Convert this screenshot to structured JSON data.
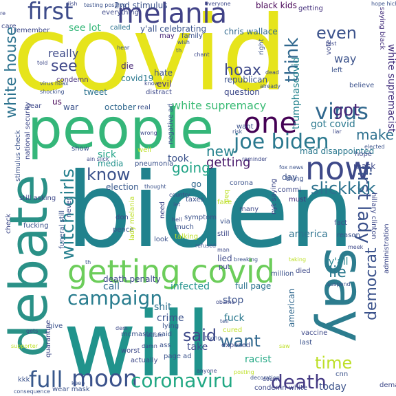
{
  "words": [
    {
      "text": "covid",
      "color": "#e6e41b"
    },
    {
      "text": "biden",
      "color": "#21828d"
    },
    {
      "text": "will",
      "color": "#20938c"
    },
    {
      "text": "debate",
      "color": "#2a9187"
    },
    {
      "text": "people",
      "color": "#34b679"
    },
    {
      "text": "say",
      "color": "#2c7c8e"
    },
    {
      "text": "getting covid",
      "color": "#6ccd5a"
    },
    {
      "text": "now",
      "color": "#3e4989"
    },
    {
      "text": "one",
      "color": "#440154"
    },
    {
      "text": "melania",
      "color": "#414287"
    },
    {
      "text": "first",
      "color": "#3e4c8a"
    },
    {
      "text": "joe biden",
      "color": "#2a788e"
    },
    {
      "text": "campaign",
      "color": "#287c8e"
    },
    {
      "text": "virus",
      "color": "#31688e"
    },
    {
      "text": "full",
      "color": "#38588c"
    },
    {
      "text": "moon",
      "color": "#3b528b"
    },
    {
      "text": "coronaviru",
      "color": "#22a884"
    },
    {
      "text": "death",
      "color": "#443983"
    },
    {
      "text": "first lady",
      "color": "#3b518b"
    },
    {
      "text": "witch girls",
      "color": "#27808e"
    },
    {
      "text": "know",
      "color": "#3b528b"
    },
    {
      "text": "slickkkk",
      "color": "#2c728e"
    },
    {
      "text": "getting",
      "color": "#48186a"
    },
    {
      "text": "white house",
      "color": "#2c728e"
    },
    {
      "text": "said",
      "color": "#3e4989"
    },
    {
      "text": "want",
      "color": "#31688e"
    },
    {
      "text": "time",
      "color": "#bddf26"
    },
    {
      "text": "think",
      "color": "#31688e"
    },
    {
      "text": "even",
      "color": "#3b528b"
    },
    {
      "text": "see",
      "color": "#3f4788"
    },
    {
      "text": "hoax",
      "color": "#3e4989"
    },
    {
      "text": "got",
      "color": "#482878"
    },
    {
      "text": "make",
      "color": "#2d708e"
    },
    {
      "text": "new",
      "color": "#26828e"
    },
    {
      "text": "lie",
      "color": "#2a788e"
    },
    {
      "text": "democrat",
      "color": "#3b528b"
    },
    {
      "text": "going",
      "color": "#20a386"
    },
    {
      "text": "really",
      "color": "#3e4a89"
    },
    {
      "text": "white supremacy",
      "color": "#3bbb75"
    },
    {
      "text": "white supremacist",
      "color": "#46327e"
    },
    {
      "text": "trumphascovid",
      "color": "#25848e"
    },
    {
      "text": "see lot",
      "color": "#35b779"
    },
    {
      "text": "y'all celebrating",
      "color": "#3a548c"
    },
    {
      "text": "chris wallace",
      "color": "#30698e"
    },
    {
      "text": "way",
      "color": "#3b528b"
    },
    {
      "text": "got covid",
      "color": "#2a788e"
    },
    {
      "text": "mad disappointed",
      "color": "#2a788e"
    },
    {
      "text": "took",
      "color": "#3b528b"
    },
    {
      "text": "media",
      "color": "#21918c"
    },
    {
      "text": "sick",
      "color": "#20a386"
    },
    {
      "text": "election",
      "color": "#38598c"
    },
    {
      "text": "go",
      "color": "#31688e"
    },
    {
      "text": "day",
      "color": "#3b528b"
    },
    {
      "text": "mask",
      "color": "#3e4989"
    },
    {
      "text": "america",
      "color": "#2c728e"
    },
    {
      "text": "y'all",
      "color": "#25848e"
    },
    {
      "text": "infected",
      "color": "#21918c"
    },
    {
      "text": "stop",
      "color": "#3b528b"
    },
    {
      "text": "call",
      "color": "#31688e"
    },
    {
      "text": "shit",
      "color": "#2d708e"
    },
    {
      "text": "crime",
      "color": "#3b528b"
    },
    {
      "text": "fuck",
      "color": "#2a788e"
    },
    {
      "text": "take",
      "color": "#3e4989"
    },
    {
      "text": "racist",
      "color": "#22a884"
    },
    {
      "text": "today",
      "color": "#3b528b"
    },
    {
      "text": "american",
      "color": "#31688e"
    },
    {
      "text": "lied",
      "color": "#3e4989"
    },
    {
      "text": "full page",
      "color": "#2c728e"
    },
    {
      "text": "death penalty",
      "color": "#3e4989"
    },
    {
      "text": "october",
      "color": "#31688e"
    },
    {
      "text": "us",
      "color": "#440154"
    },
    {
      "text": "die",
      "color": "#482878"
    },
    {
      "text": "hate",
      "color": "#3b528b"
    },
    {
      "text": "evil",
      "color": "#46327e"
    },
    {
      "text": "republican",
      "color": "#3b528b"
    },
    {
      "text": "question",
      "color": "#3e4989"
    },
    {
      "text": "tweet",
      "color": "#2c728e"
    },
    {
      "text": "covid19",
      "color": "#2a788e"
    },
    {
      "text": "condemn",
      "color": "#46327e"
    },
    {
      "text": "war",
      "color": "#3b528b"
    },
    {
      "text": "year",
      "color": "#3e4989"
    },
    {
      "text": "real",
      "color": "#3b528b"
    },
    {
      "text": "2nd stimulus",
      "color": "#3b528b"
    },
    {
      "text": "everything",
      "color": "#3e4989"
    },
    {
      "text": "called",
      "color": "#2c728e"
    },
    {
      "text": "family",
      "color": "#3b528b"
    },
    {
      "text": "may",
      "color": "#482878"
    },
    {
      "text": "black kids",
      "color": "#440154"
    },
    {
      "text": "getting",
      "color": "#46327e"
    },
    {
      "text": "saying black",
      "color": "#46327e"
    },
    {
      "text": "remember",
      "color": "#3e4989"
    },
    {
      "text": "taxes",
      "color": "#3b528b"
    },
    {
      "text": "pneumonia",
      "color": "#3b528b"
    },
    {
      "text": "symptom",
      "color": "#3b528b"
    },
    {
      "text": "need",
      "color": "#3e4989"
    },
    {
      "text": "much",
      "color": "#3b528b"
    },
    {
      "text": "pence",
      "color": "#3b528b"
    },
    {
      "text": "don",
      "color": "#3e4989"
    },
    {
      "text": "look",
      "color": "#3b528b"
    },
    {
      "text": "still",
      "color": "#3e4989"
    },
    {
      "text": "talking",
      "color": "#bddf26"
    },
    {
      "text": "many",
      "color": "#3e4989"
    },
    {
      "text": "via",
      "color": "#3b528b"
    },
    {
      "text": "nyt saying",
      "color": "#3e4989"
    },
    {
      "text": "fact",
      "color": "#3b528b"
    },
    {
      "text": "reason",
      "color": "#3b528b"
    },
    {
      "text": "hillary clinton",
      "color": "#3e4989"
    },
    {
      "text": "million",
      "color": "#3b528b"
    },
    {
      "text": "died",
      "color": "#3e4989"
    },
    {
      "text": "corona",
      "color": "#3b528b"
    },
    {
      "text": "commi",
      "color": "#3e4989"
    },
    {
      "text": "must",
      "color": "#46327e"
    },
    {
      "text": "thing",
      "color": "#3b528b"
    },
    {
      "text": "hope",
      "color": "#3e4989"
    },
    {
      "text": "well",
      "color": "#bddf26"
    },
    {
      "text": "show",
      "color": "#3b528b"
    },
    {
      "text": "check",
      "color": "#3e4989"
    },
    {
      "text": "stimulus check",
      "color": "#3b528b"
    },
    {
      "text": "still asking",
      "color": "#3e4989"
    },
    {
      "text": "fucking",
      "color": "#3b528b"
    },
    {
      "text": "never",
      "color": "#3e4989"
    },
    {
      "text": "funeral still",
      "color": "#3b528b"
    },
    {
      "text": "lady melania",
      "color": "#bddf26"
    },
    {
      "text": "negative ad",
      "color": "#3b528b"
    },
    {
      "text": "mcmaster said",
      "color": "#3b528b"
    },
    {
      "text": "worst",
      "color": "#3e4989"
    },
    {
      "text": "lying",
      "color": "#3b528b"
    },
    {
      "text": "put",
      "color": "#3e4989"
    },
    {
      "text": "give",
      "color": "#3b528b"
    },
    {
      "text": "actually",
      "color": "#3e4989"
    },
    {
      "text": "page ad",
      "color": "#3b528b"
    },
    {
      "text": "exposed",
      "color": "#3e4989"
    },
    {
      "text": "wear mask",
      "color": "#3b528b"
    },
    {
      "text": "condemn white",
      "color": "#3e4989"
    },
    {
      "text": "cnn",
      "color": "#3b528b"
    },
    {
      "text": "demanding",
      "color": "#3e4989"
    },
    {
      "text": "last",
      "color": "#3b528b"
    },
    {
      "text": "vaccine",
      "color": "#3e4989"
    },
    {
      "text": "kkk",
      "color": "#3b528b"
    },
    {
      "text": "quarantine",
      "color": "#3e4989"
    },
    {
      "text": "supporter",
      "color": "#bddf26"
    },
    {
      "text": "consequence",
      "color": "#3b528b"
    },
    {
      "text": "administration",
      "color": "#3e4989"
    },
    {
      "text": "breaking",
      "color": "#3b528b"
    },
    {
      "text": "national security",
      "color": "#3e4989"
    },
    {
      "text": "shocking",
      "color": "#3b528b"
    },
    {
      "text": "distract",
      "color": "#3e4989"
    },
    {
      "text": "believe",
      "color": "#3b528b"
    },
    {
      "text": "vote",
      "color": "#3e4989"
    },
    {
      "text": "left",
      "color": "#3b528b"
    },
    {
      "text": "test",
      "color": "#3e4989"
    },
    {
      "text": "hope hicks",
      "color": "#3b528b"
    },
    {
      "text": "everyone",
      "color": "#3e4989"
    },
    {
      "text": "testing positive",
      "color": "#3b528b"
    },
    {
      "text": "dish",
      "color": "#3e4989"
    },
    {
      "text": "wish",
      "color": "#3b528b"
    },
    {
      "text": "chant",
      "color": "#3e4989"
    },
    {
      "text": "hear",
      "color": "#3b528b"
    },
    {
      "text": "told",
      "color": "#3e4989"
    },
    {
      "text": "virus hoax",
      "color": "#3b528b"
    },
    {
      "text": "know",
      "color": "#3e4989"
    },
    {
      "text": "right",
      "color": "#3b528b"
    },
    {
      "text": "dead",
      "color": "#3e4989"
    },
    {
      "text": "already",
      "color": "#3b528b"
    },
    {
      "text": "wrong",
      "color": "#3e4989"
    },
    {
      "text": "risk",
      "color": "#3b528b"
    },
    {
      "text": "liar",
      "color": "#3e4989"
    },
    {
      "text": "elected",
      "color": "#3b528b"
    },
    {
      "text": "reminder",
      "color": "#3e4989"
    },
    {
      "text": "fox news",
      "color": "#3b528b"
    },
    {
      "text": "ain slick",
      "color": "#3e4989"
    },
    {
      "text": "thought",
      "color": "#3b528b"
    },
    {
      "text": "country",
      "color": "#3e4989"
    },
    {
      "text": "let",
      "color": "#3b528b"
    },
    {
      "text": "hell",
      "color": "#3e4989"
    },
    {
      "text": "refused",
      "color": "#3b528b"
    },
    {
      "text": "meek",
      "color": "#3e4989"
    },
    {
      "text": "taking",
      "color": "#bddf26"
    },
    {
      "text": "suspend",
      "color": "#3b528b"
    },
    {
      "text": "obama",
      "color": "#3e4989"
    },
    {
      "text": "trying",
      "color": "#3b528b"
    },
    {
      "text": "damn",
      "color": "#3e4989"
    },
    {
      "text": "racism",
      "color": "#3b528b"
    },
    {
      "text": "anyone",
      "color": "#3e4989"
    },
    {
      "text": "posting",
      "color": "#bddf26"
    },
    {
      "text": "decoration",
      "color": "#3b528b"
    },
    {
      "text": "doesn",
      "color": "#3e4989"
    },
    {
      "text": "keep",
      "color": "#3b528b"
    },
    {
      "text": "care",
      "color": "#3e4989"
    },
    {
      "text": "th",
      "color": "#3b528b"
    },
    {
      "text": "man",
      "color": "#3e4989"
    },
    {
      "text": "want",
      "color": "#3b528b"
    },
    {
      "text": "gets",
      "color": "#3e4989"
    },
    {
      "text": "cured",
      "color": "#bddf26"
    },
    {
      "text": "tell",
      "color": "#3b528b"
    },
    {
      "text": "dem",
      "color": "#3e4989"
    },
    {
      "text": "ass",
      "color": "#3b528b"
    },
    {
      "text": "bad",
      "color": "#bddf26"
    },
    {
      "text": "fake",
      "color": "#bddf26"
    },
    {
      "text": "re",
      "color": "#3e4989"
    },
    {
      "text": "th",
      "color": "#3b528b"
    },
    {
      "text": "saw",
      "color": "#bddf26"
    },
    {
      "text": "rt",
      "color": "#3e4989"
    }
  ]
}
